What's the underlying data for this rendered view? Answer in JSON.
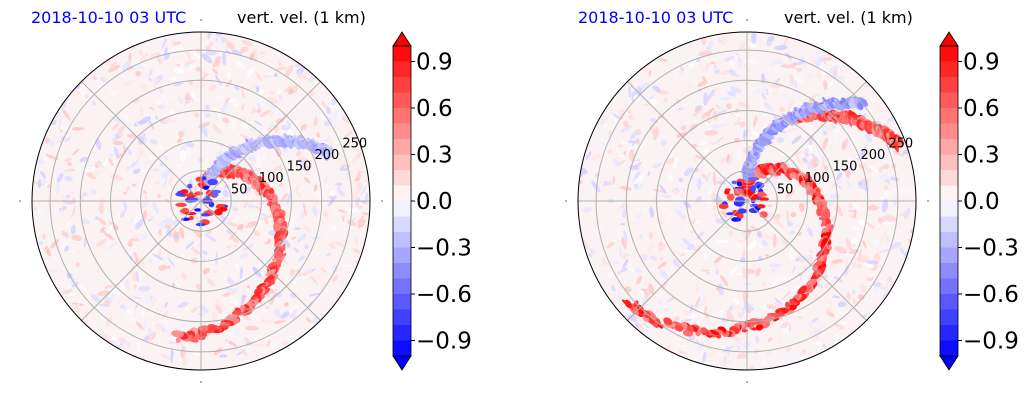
{
  "colors": {
    "title_time": "#0000ff",
    "positive": "#ff0000",
    "negative": "#0000ff"
  },
  "panels": [
    {
      "time_label": "2018-10-10 03 UTC",
      "field_label": "vert. vel. (1 km)"
    },
    {
      "time_label": "2018-10-10 03 UTC",
      "field_label": "vert. vel. (1 km)"
    }
  ],
  "chart_data": [
    {
      "type": "heatmap",
      "projection": "polar",
      "title": "vert. vel. (1 km)",
      "time": "2018-10-10 03 UTC",
      "radial_ticks": [
        50,
        100,
        150,
        200,
        250
      ],
      "radial_max": 280,
      "angular_gridlines_deg": [
        0,
        45,
        90,
        135,
        180,
        225,
        270,
        315
      ],
      "colorbar": {
        "ticks": [
          -0.9,
          -0.6,
          -0.3,
          0.0,
          0.3,
          0.6,
          0.9
        ],
        "tick_labels": [
          "−0.9",
          "−0.6",
          "−0.3",
          "0.0",
          "0.3",
          "0.6",
          "0.9"
        ],
        "range": [
          -1.0,
          1.0
        ],
        "extend": "both",
        "colormap": "bwr"
      },
      "features": [
        {
          "type": "spiral_band",
          "sign": "positive",
          "start_angle_deg": 80,
          "end_angle_deg": -100,
          "r_start": 30,
          "r_end": 230,
          "intensity": 0.9
        },
        {
          "type": "spiral_band",
          "sign": "negative",
          "start_angle_deg": 70,
          "end_angle_deg": 20,
          "r_start": 40,
          "r_end": 230,
          "intensity": 0.4
        }
      ]
    },
    {
      "type": "heatmap",
      "projection": "polar",
      "title": "vert. vel. (1 km)",
      "time": "2018-10-10 03 UTC",
      "radial_ticks": [
        50,
        100,
        150,
        200,
        250
      ],
      "radial_max": 280,
      "angular_gridlines_deg": [
        0,
        45,
        90,
        135,
        180,
        225,
        270,
        315
      ],
      "colorbar": {
        "ticks": [
          -0.9,
          -0.6,
          -0.3,
          0.0,
          0.3,
          0.6,
          0.9
        ],
        "tick_labels": [
          "−0.9",
          "−0.6",
          "−0.3",
          "0.0",
          "0.3",
          "0.6",
          "0.9"
        ],
        "range": [
          -1.0,
          1.0
        ],
        "extend": "both",
        "colormap": "bwr"
      },
      "features": [
        {
          "type": "spiral_band",
          "sign": "positive",
          "start_angle_deg": 100,
          "end_angle_deg": -140,
          "r_start": 20,
          "r_end": 260,
          "intensity": 1.0
        },
        {
          "type": "spiral_band",
          "sign": "positive",
          "start_angle_deg": 60,
          "end_angle_deg": 20,
          "r_start": 160,
          "r_end": 270,
          "intensity": 0.9
        },
        {
          "type": "spiral_band",
          "sign": "negative",
          "start_angle_deg": 90,
          "end_angle_deg": 40,
          "r_start": 40,
          "r_end": 250,
          "intensity": 0.5
        }
      ]
    }
  ]
}
